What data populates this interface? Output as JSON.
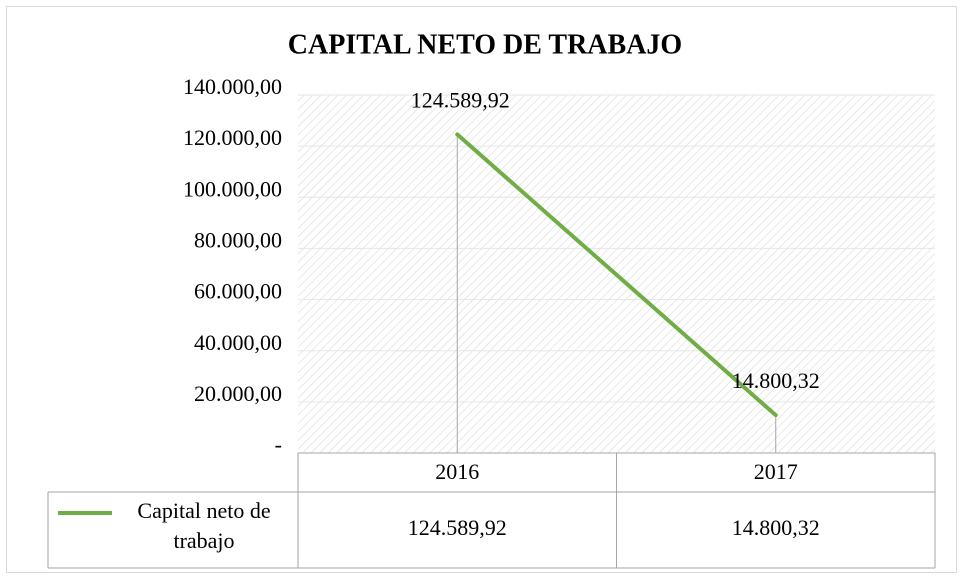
{
  "chart_data": {
    "type": "line",
    "title": "CAPITAL NETO DE TRABAJO",
    "categories": [
      "2016",
      "2017"
    ],
    "series": [
      {
        "name": "Capital neto de trabajo",
        "color": "#70ad47",
        "values": [
          124589.92,
          14800.32
        ],
        "value_labels": [
          "124.589,92",
          "14.800,32"
        ]
      }
    ],
    "ylim": [
      0,
      140000
    ],
    "yticks": [
      {
        "value": 0,
        "label": "-"
      },
      {
        "value": 20000,
        "label": "20.000,00"
      },
      {
        "value": 40000,
        "label": "40.000,00"
      },
      {
        "value": 60000,
        "label": "60.000,00"
      },
      {
        "value": 80000,
        "label": "80.000,00"
      },
      {
        "value": 100000,
        "label": "100.000,00"
      },
      {
        "value": 120000,
        "label": "120.000,00"
      },
      {
        "value": 140000,
        "label": "140.000,00"
      }
    ],
    "grid": true,
    "data_table": true
  }
}
